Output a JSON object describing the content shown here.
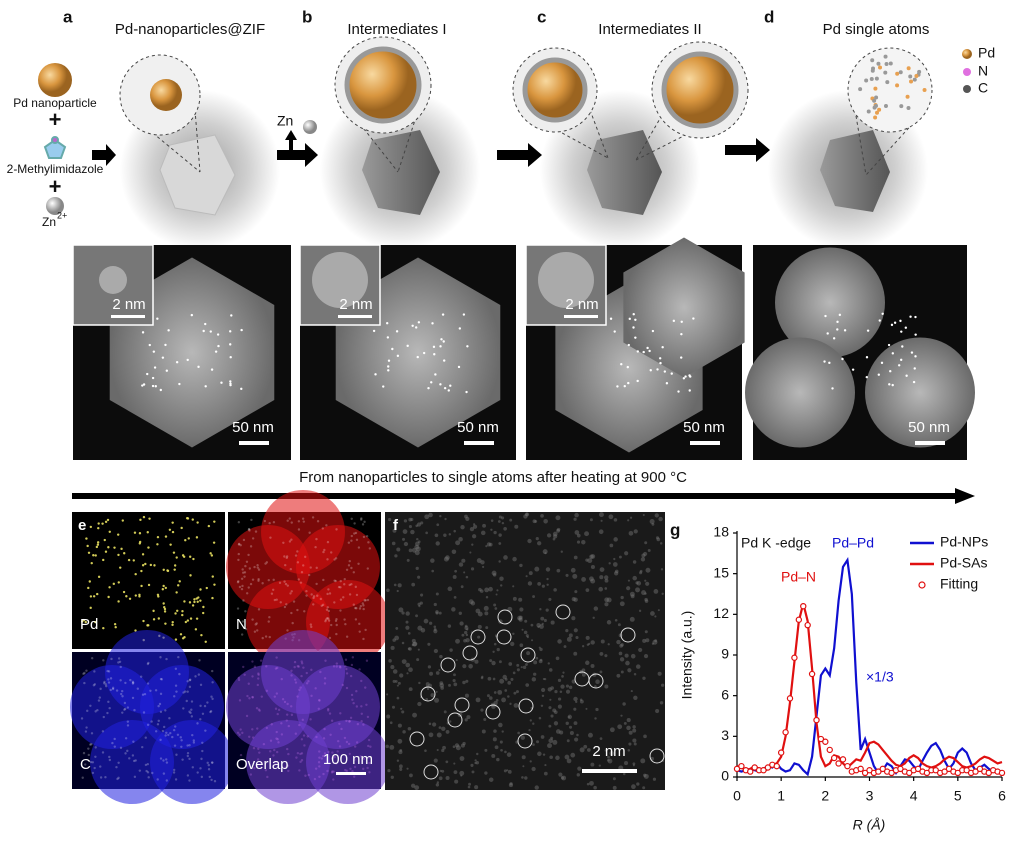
{
  "schematic": {
    "panels": [
      {
        "letter": "a",
        "title": "Pd-nanoparticles@ZIF"
      },
      {
        "letter": "b",
        "title": "Intermediates I"
      },
      {
        "letter": "c",
        "title": "Intermediates II"
      },
      {
        "letter": "d",
        "title": "Pd single atoms"
      }
    ],
    "reagents": [
      "Pd nanoparticle",
      "2-Methylimidazole"
    ],
    "zn_ion": {
      "base": "Zn",
      "charge": "2+"
    },
    "zn_release": "Zn",
    "legend": [
      "Pd",
      "N",
      "C"
    ]
  },
  "micrographs": [
    {
      "inset_scale": "2 nm",
      "scale": "50 nm"
    },
    {
      "inset_scale": "2 nm",
      "scale": "50 nm"
    },
    {
      "inset_scale": "2 nm",
      "scale": "50 nm"
    },
    {
      "scale": "50 nm"
    }
  ],
  "process_caption": "From nanoparticles to single atoms after heating at 900 °C",
  "mapping": {
    "letter": "e",
    "channels": [
      "Pd",
      "N",
      "C",
      "Overlap"
    ],
    "scale": "100 nm"
  },
  "hrstem": {
    "letter": "f",
    "scale": "2 nm"
  },
  "chart_data": {
    "type": "line",
    "panel_label": "g",
    "ylabel": "Intensity (a.u.)",
    "xlabel": "R (Å)",
    "annotations": [
      {
        "text": "Pd K -edge",
        "color": "#111111"
      },
      {
        "text": "Pd–Pd",
        "color": "#1010d0"
      },
      {
        "text": "Pd–N",
        "color": "#e01010"
      },
      {
        "text": "×1/3",
        "color": "#1010d0"
      }
    ],
    "xlim": [
      0,
      6
    ],
    "xticks": [
      0,
      1,
      2,
      3,
      4,
      5,
      6
    ],
    "ylim": [
      0,
      18
    ],
    "yticks": [
      0,
      3,
      6,
      9,
      12,
      15,
      18
    ],
    "legend": "upper right",
    "x": [
      0,
      0.1,
      0.2,
      0.3,
      0.4,
      0.5,
      0.6,
      0.7,
      0.8,
      0.9,
      1,
      1.1,
      1.2,
      1.3,
      1.4,
      1.5,
      1.6,
      1.7,
      1.8,
      1.9,
      2,
      2.1,
      2.2,
      2.3,
      2.4,
      2.5,
      2.6,
      2.7,
      2.8,
      2.9,
      3,
      3.1,
      3.2,
      3.3,
      3.4,
      3.5,
      3.6,
      3.7,
      3.8,
      3.9,
      4,
      4.1,
      4.2,
      4.3,
      4.4,
      4.5,
      4.6,
      4.7,
      4.8,
      4.9,
      5,
      5.1,
      5.2,
      5.3,
      5.4,
      5.5,
      5.6,
      5.7,
      5.8,
      5.9,
      6
    ],
    "series": [
      {
        "name": "Pd-NPs",
        "color": "#1010d0",
        "mode": "line",
        "values": [
          0.5,
          0.4,
          0.5,
          0.6,
          0.5,
          0.4,
          0.6,
          0.8,
          0.7,
          1.0,
          0.6,
          0.4,
          0.5,
          1.0,
          0.9,
          0.5,
          0.2,
          1.5,
          4.5,
          7.5,
          8.0,
          7.5,
          9.5,
          13.0,
          15.5,
          16.0,
          13.5,
          7.0,
          2.0,
          2.8,
          1.8,
          0.8,
          0.3,
          0.5,
          1.0,
          0.8,
          0.3,
          0.8,
          1.3,
          1.2,
          0.8,
          0.5,
          1.2,
          1.8,
          2.3,
          2.5,
          2.0,
          1.2,
          0.6,
          1.0,
          1.8,
          2.1,
          1.8,
          1.0,
          0.5,
          0.7,
          0.9,
          0.6,
          0.4,
          0.5,
          0.4
        ]
      },
      {
        "name": "Pd-SAs",
        "color": "#e01010",
        "mode": "line",
        "values": [
          0.8,
          0.7,
          0.5,
          0.6,
          0.8,
          0.6,
          0.4,
          0.6,
          0.9,
          1.0,
          1.5,
          3.0,
          5.5,
          8.5,
          11.5,
          12.8,
          11.5,
          8.0,
          4.0,
          1.5,
          0.8,
          1.0,
          1.6,
          1.5,
          1.0,
          0.7,
          1.0,
          1.3,
          1.2,
          1.8,
          2.5,
          2.6,
          2.4,
          2.0,
          1.6,
          1.2,
          0.9,
          0.8,
          1.0,
          1.4,
          1.6,
          1.4,
          1.0,
          0.8,
          0.7,
          0.8,
          1.0,
          1.3,
          1.5,
          1.4,
          1.1,
          0.8,
          0.7,
          0.8,
          1.0,
          1.3,
          1.5,
          1.4,
          1.2,
          1.0,
          1.1
        ]
      },
      {
        "name": "Fitting",
        "color": "#e01010",
        "mode": "markers",
        "values": [
          0.6,
          0.8,
          0.5,
          0.4,
          0.7,
          0.5,
          0.5,
          0.7,
          0.9,
          0.8,
          1.8,
          3.3,
          5.8,
          8.8,
          11.6,
          12.6,
          11.2,
          7.6,
          4.2,
          2.8,
          2.6,
          2.0,
          1.4,
          1.0,
          1.3,
          0.8,
          0.4,
          0.5,
          0.6,
          0.3,
          0.5,
          0.3,
          0.4,
          0.6,
          0.4,
          0.3,
          0.5,
          0.6,
          0.4,
          0.3,
          0.5,
          0.6,
          0.4,
          0.3,
          0.5,
          0.5,
          0.3,
          0.4,
          0.6,
          0.4,
          0.3,
          0.5,
          0.5,
          0.3,
          0.4,
          0.6,
          0.4,
          0.3,
          0.5,
          0.4,
          0.3
        ]
      }
    ]
  }
}
